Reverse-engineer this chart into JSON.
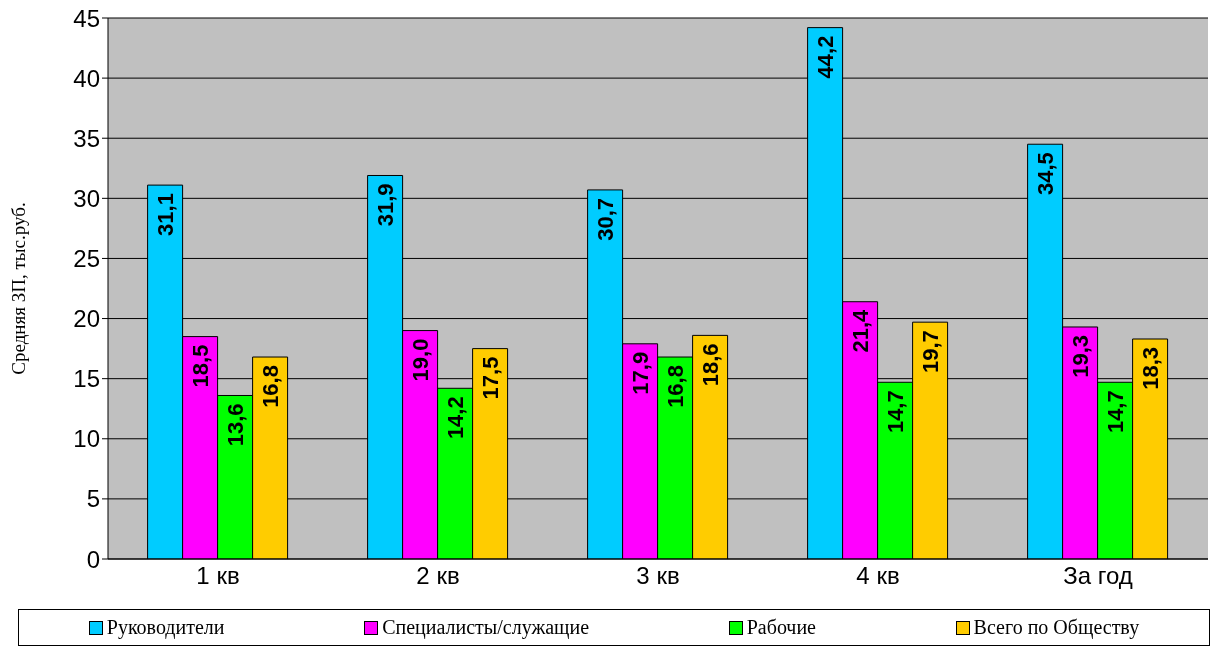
{
  "chart_data": {
    "type": "bar",
    "ylabel": "Средняя ЗП, тыс.руб.",
    "categories": [
      "1 кв",
      "2 кв",
      "3 кв",
      "4 кв",
      "За год"
    ],
    "series": [
      {
        "name": "Руководители",
        "color": "#00ccff",
        "values": [
          31.1,
          31.9,
          30.7,
          44.2,
          34.5
        ],
        "value_labels": [
          "31,1",
          "31,9",
          "30,7",
          "44,2",
          "34,5"
        ]
      },
      {
        "name": "Специалисты/служащие",
        "color": "#ff00ff",
        "values": [
          18.5,
          19.0,
          17.9,
          21.4,
          19.3
        ],
        "value_labels": [
          "18,5",
          "19,0",
          "17,9",
          "21,4",
          "19,3"
        ]
      },
      {
        "name": "Рабочие",
        "color": "#00ff00",
        "values": [
          13.6,
          14.2,
          16.8,
          14.7,
          14.7
        ],
        "value_labels": [
          "13,6",
          "14,2",
          "16,8",
          "14,7",
          "14,7"
        ]
      },
      {
        "name": "Всего по Обществу",
        "color": "#ffcc00",
        "values": [
          16.8,
          17.5,
          18.6,
          19.7,
          18.3
        ],
        "value_labels": [
          "16,8",
          "17,5",
          "18,6",
          "19,7",
          "18,3"
        ]
      }
    ],
    "ylim": [
      0,
      45
    ],
    "yticks": [
      0,
      5,
      10,
      15,
      20,
      25,
      30,
      35,
      40,
      45
    ],
    "grid": "y",
    "legend": "bottom"
  }
}
